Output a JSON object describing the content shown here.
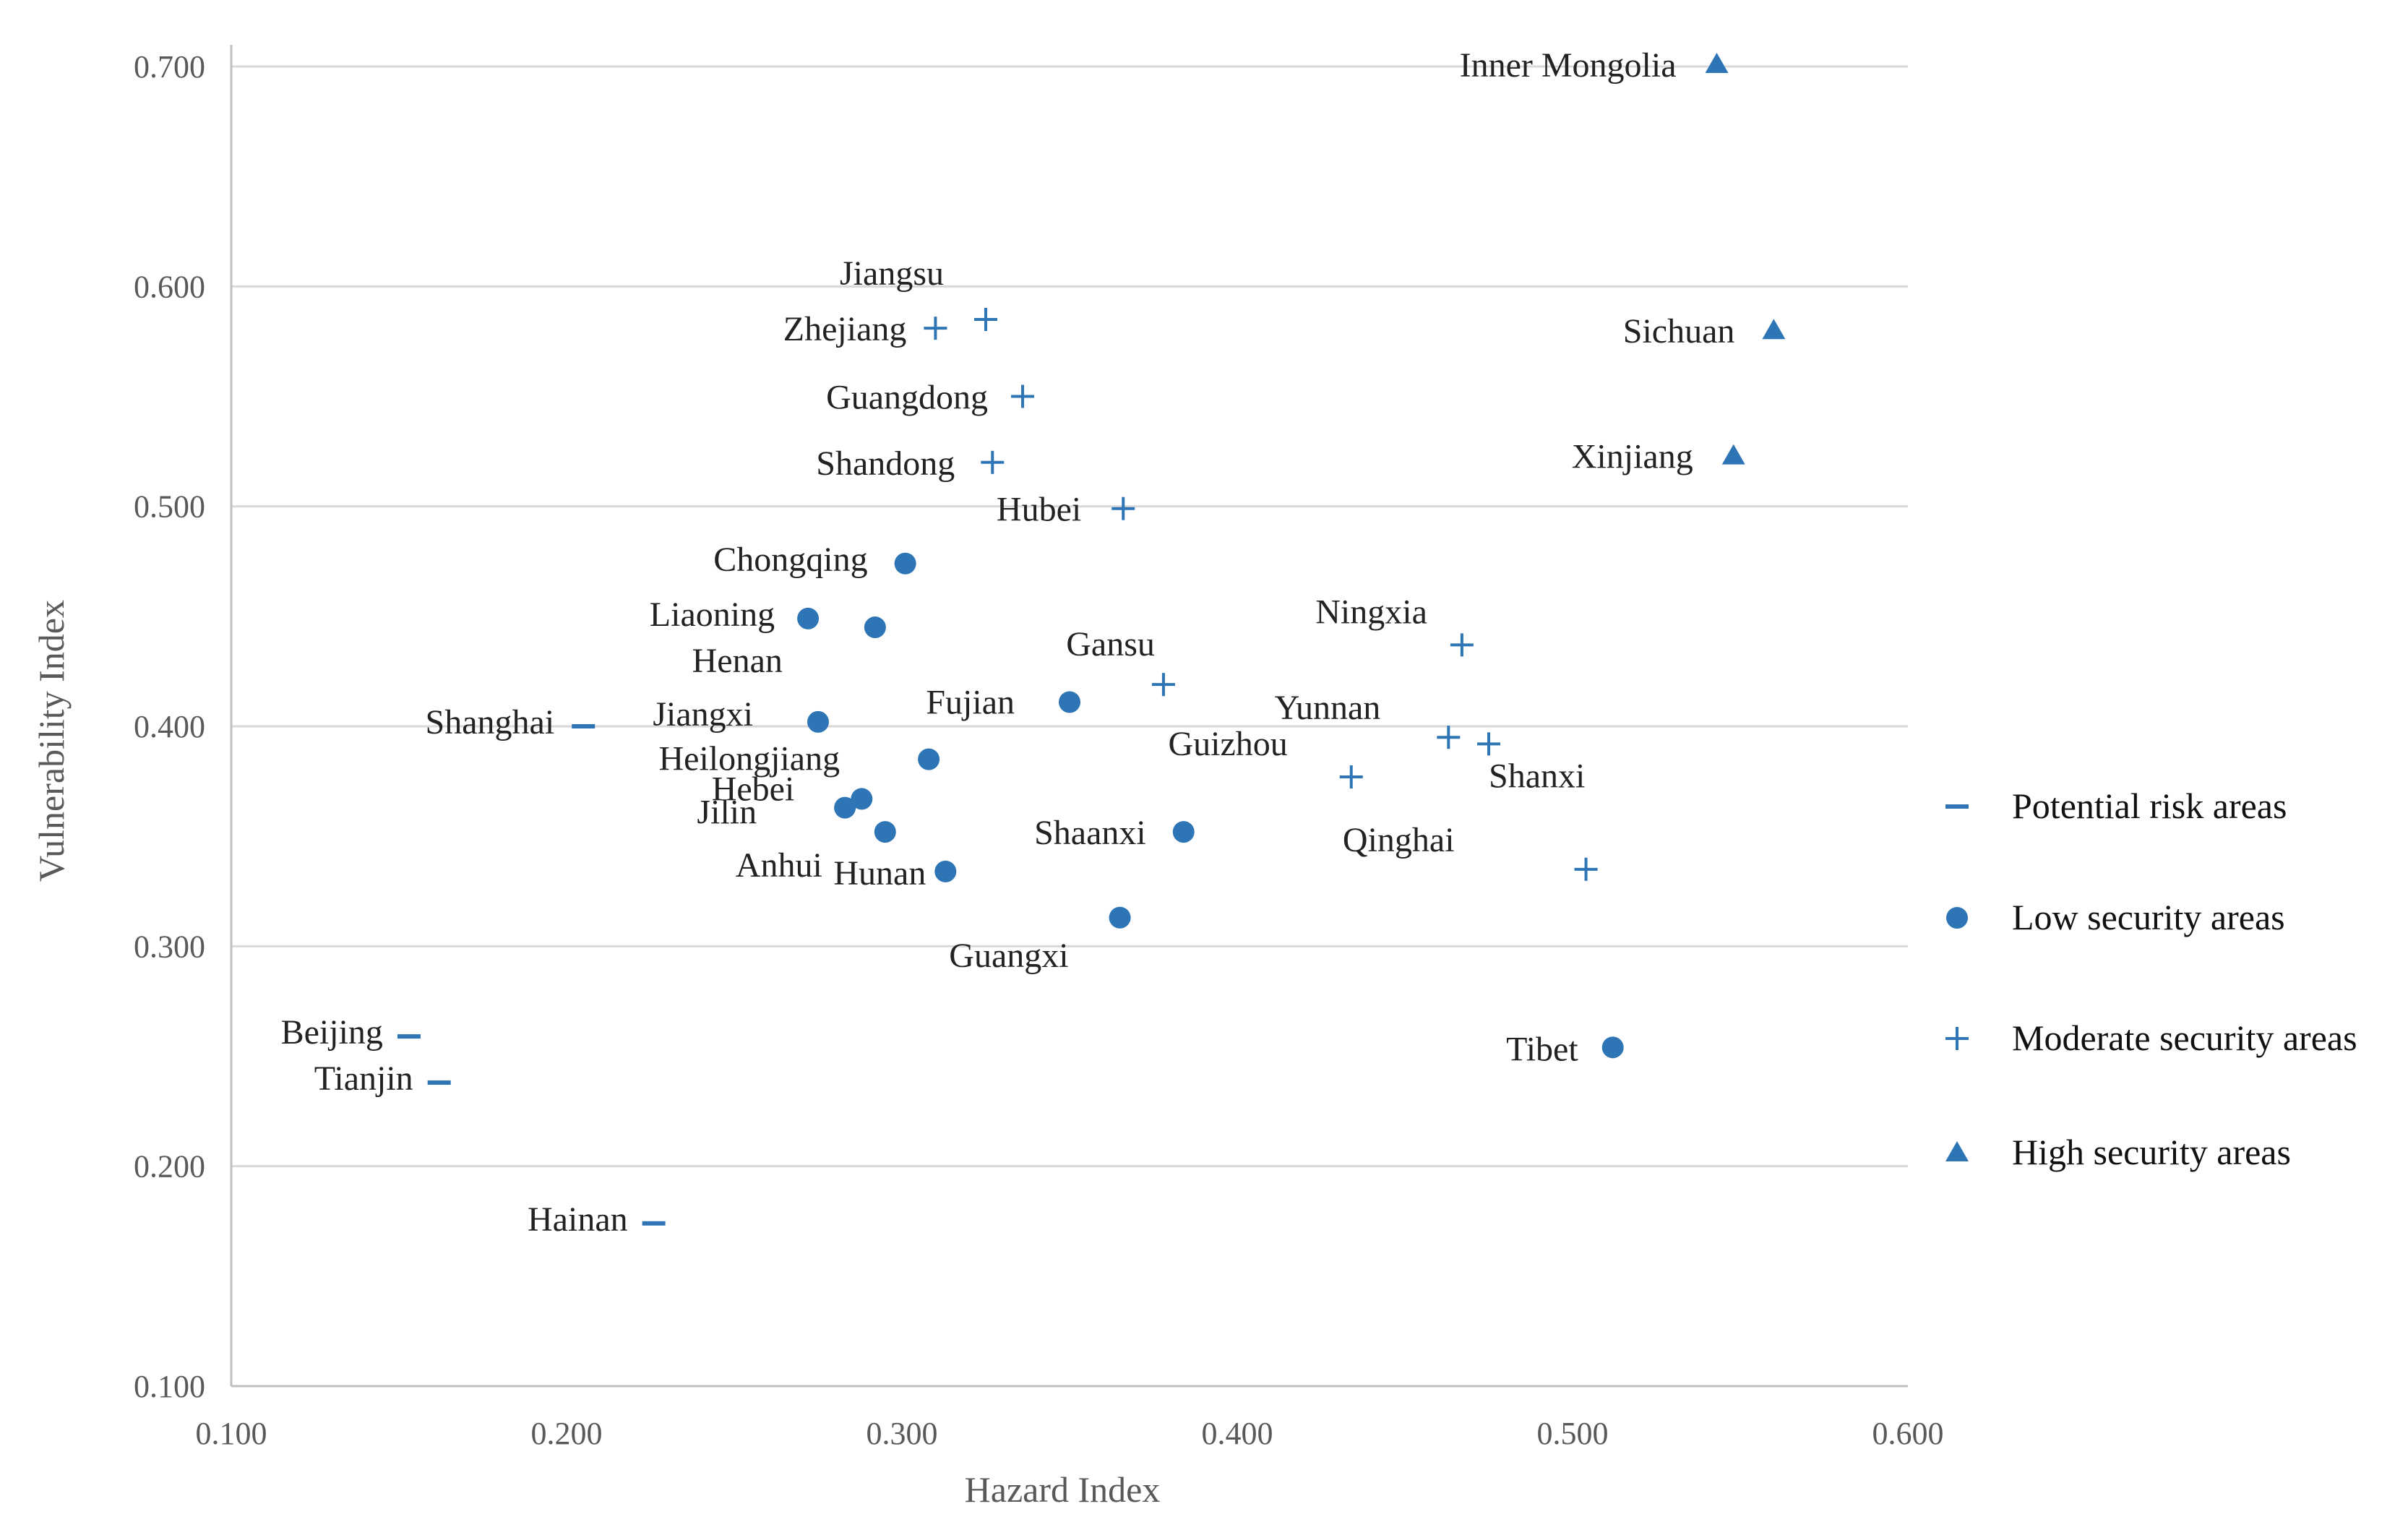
{
  "chart_data": {
    "type": "scatter",
    "title": "",
    "xlabel": "Hazard Index",
    "ylabel": "Vulnerability Index",
    "xlim": [
      0.1,
      0.6
    ],
    "ylim": [
      0.1,
      0.7
    ],
    "xticks": [
      "0.100",
      "0.200",
      "0.300",
      "0.400",
      "0.500",
      "0.600"
    ],
    "yticks": [
      "0.100",
      "0.200",
      "0.300",
      "0.400",
      "0.500",
      "0.600",
      "0.700"
    ],
    "grid": "horizontal",
    "legend_position": "right",
    "color": "#2E75B6",
    "series": [
      {
        "name": "Potential risk areas",
        "marker": "dash",
        "points": [
          {
            "label": "Shanghai",
            "x": 0.205,
            "y": 0.4
          },
          {
            "label": "Beijing",
            "x": 0.153,
            "y": 0.259
          },
          {
            "label": "Tianjin",
            "x": 0.162,
            "y": 0.238
          },
          {
            "label": "Hainan",
            "x": 0.226,
            "y": 0.174
          }
        ]
      },
      {
        "name": "Low security areas",
        "marker": "circle",
        "points": [
          {
            "label": "Chongqing",
            "x": 0.301,
            "y": 0.474
          },
          {
            "label": "Liaoning",
            "x": 0.272,
            "y": 0.449
          },
          {
            "label": "Henan",
            "x": 0.292,
            "y": 0.445
          },
          {
            "label": "Jiangxi",
            "x": 0.275,
            "y": 0.402
          },
          {
            "label": "Fujian",
            "x": 0.35,
            "y": 0.411
          },
          {
            "label": "Heilongjiang",
            "x": 0.308,
            "y": 0.385
          },
          {
            "label": "Hebei",
            "x": 0.288,
            "y": 0.367
          },
          {
            "label": "Jilin",
            "x": 0.283,
            "y": 0.363
          },
          {
            "label": "Anhui",
            "x": 0.295,
            "y": 0.352
          },
          {
            "label": "Hunan",
            "x": 0.313,
            "y": 0.334
          },
          {
            "label": "Shaanxi",
            "x": 0.384,
            "y": 0.352
          },
          {
            "label": "Guangxi",
            "x": 0.365,
            "y": 0.313
          },
          {
            "label": "Tibet",
            "x": 0.512,
            "y": 0.254
          }
        ]
      },
      {
        "name": "Moderate security areas",
        "marker": "plus",
        "points": [
          {
            "label": "Jiangsu",
            "x": 0.325,
            "y": 0.585
          },
          {
            "label": "Zhejiang",
            "x": 0.31,
            "y": 0.581
          },
          {
            "label": "Guangdong",
            "x": 0.336,
            "y": 0.55
          },
          {
            "label": "Shandong",
            "x": 0.327,
            "y": 0.52
          },
          {
            "label": "Hubei",
            "x": 0.366,
            "y": 0.499
          },
          {
            "label": "Gansu",
            "x": 0.378,
            "y": 0.419
          },
          {
            "label": "Ningxia",
            "x": 0.467,
            "y": 0.437
          },
          {
            "label": "Yunnan",
            "x": 0.463,
            "y": 0.395
          },
          {
            "label": "Shanxi",
            "x": 0.475,
            "y": 0.392
          },
          {
            "label": "Guizhou",
            "x": 0.434,
            "y": 0.377
          },
          {
            "label": "Qinghai",
            "x": 0.504,
            "y": 0.335
          }
        ]
      },
      {
        "name": "High security areas",
        "marker": "triangle",
        "points": [
          {
            "label": "Inner Mongolia",
            "x": 0.543,
            "y": 0.701
          },
          {
            "label": "Sichuan",
            "x": 0.56,
            "y": 0.58
          },
          {
            "label": "Xinjiang",
            "x": 0.548,
            "y": 0.523
          }
        ]
      }
    ]
  }
}
